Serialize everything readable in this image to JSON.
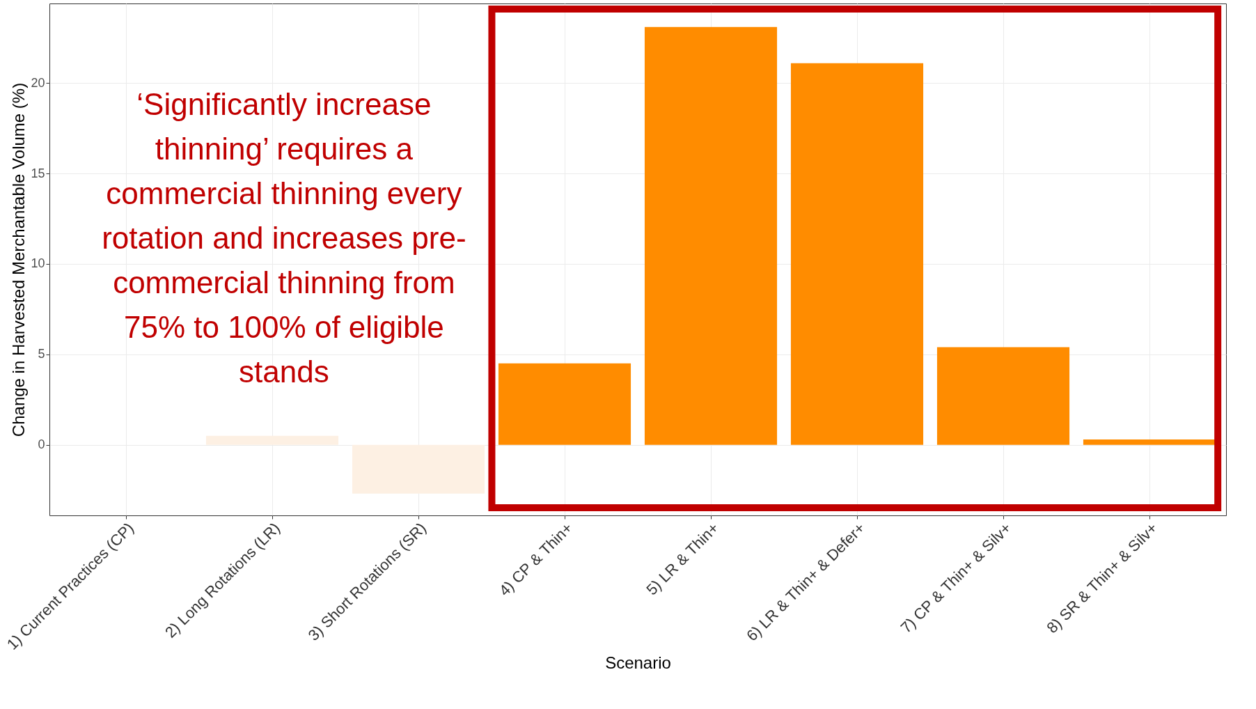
{
  "chart_data": {
    "type": "bar",
    "xlabel": "Scenario",
    "ylabel": "Change in Harvested Merchantable Volume (%)",
    "categories": [
      "1) Current Practices (CP)",
      "2) Long Rotations (LR)",
      "3) Short Rotations (SR)",
      "4) CP & Thin+",
      "5) LR & Thin+",
      "6) LR & Thin+ & Defer+",
      "7) CP & Thin+ & Silv+",
      "8) SR & Thin+ & Silv+"
    ],
    "values": [
      0,
      0.5,
      -2.7,
      4.5,
      23.1,
      21.1,
      5.4,
      0.3
    ],
    "colors": [
      "#fdf0e3",
      "#fdf0e3",
      "#fdf0e3",
      "#ff8c00",
      "#ff8c00",
      "#ff8c00",
      "#ff8c00",
      "#ff8c00"
    ],
    "ylim": [
      -3.9,
      24.4
    ],
    "yticks": [
      0,
      5,
      10,
      15,
      20
    ],
    "grid": true,
    "annotations": [
      "‘Significantly increase\nthinning’ requires a\ncommercial thinning every\nrotation and increases pre-\ncommercial thinning from\n75% to 100% of eligible\nstands"
    ]
  }
}
